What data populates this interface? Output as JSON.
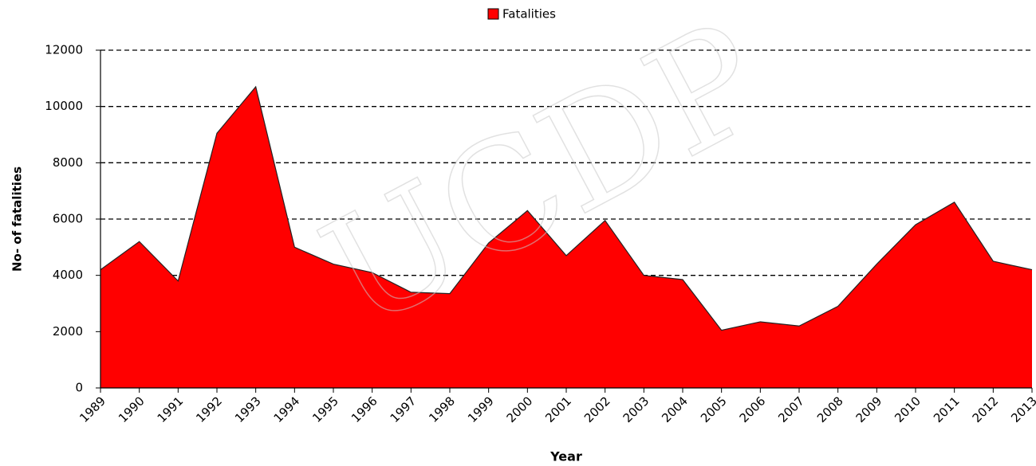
{
  "chart_data": {
    "type": "area",
    "legend_label": "Fatalities",
    "watermark": "UCDP",
    "x_label": "Year",
    "y_label": "No- of fatalities",
    "series": [
      {
        "name": "Fatalities",
        "color": "#ff0000",
        "values": [
          4200,
          5200,
          3800,
          9050,
          10700,
          5000,
          4400,
          4100,
          3400,
          3350,
          5150,
          6300,
          4700,
          5950,
          4000,
          3850,
          2050,
          2350,
          2200,
          2900,
          4400,
          5800,
          6600,
          4500,
          4200
        ]
      }
    ],
    "categories": [
      "1989",
      "1990",
      "1991",
      "1992",
      "1993",
      "1994",
      "1995",
      "1996",
      "1997",
      "1998",
      "1999",
      "2000",
      "2001",
      "2002",
      "2003",
      "2004",
      "2005",
      "2006",
      "2007",
      "2008",
      "2009",
      "2010",
      "2011",
      "2012",
      "2013"
    ],
    "ylim": [
      0,
      12000
    ],
    "yticks": [
      0,
      2000,
      4000,
      6000,
      8000,
      10000,
      12000
    ],
    "grid": true,
    "legend_position": "top"
  }
}
